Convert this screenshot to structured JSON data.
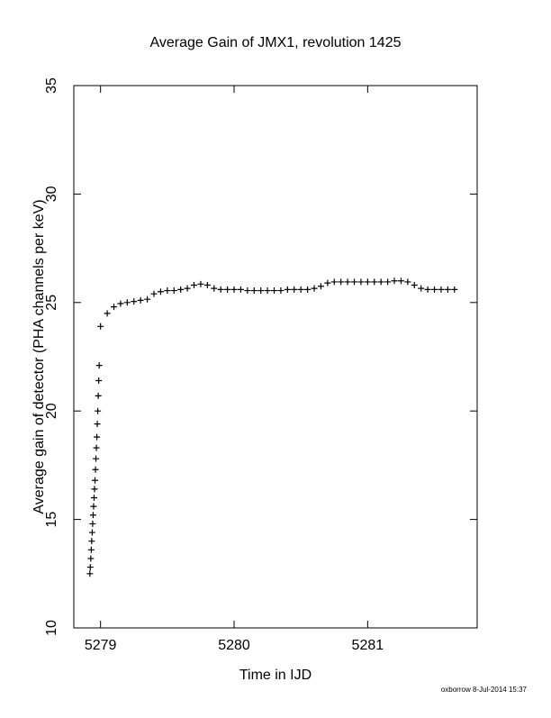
{
  "chart_data": {
    "type": "scatter",
    "title": "Average Gain of JMX1, revolution 1425",
    "x_label": "Time in IJD",
    "y_label": "Average gain of detector (PHA channels per keV)",
    "footer": "oxborrow  8-Jul-2014 15:37",
    "xlim": [
      5278.8,
      5281.82
    ],
    "xticks": [
      5279,
      5280,
      5281
    ],
    "ylim": [
      10,
      35
    ],
    "yticks": [
      10,
      15,
      20,
      25,
      30,
      35
    ],
    "marker": "+",
    "color": "#000000",
    "x": [
      5278.92,
      5278.9235,
      5278.927,
      5278.9305,
      5278.934,
      5278.9375,
      5278.941,
      5278.9445,
      5278.948,
      5278.9515,
      5278.955,
      5278.9585,
      5278.962,
      5278.9655,
      5278.969,
      5278.9725,
      5278.976,
      5278.9795,
      5278.983,
      5278.9865,
      5278.99,
      5279.0,
      5279.05,
      5279.1,
      5279.15,
      5279.2,
      5279.25,
      5279.3,
      5279.35,
      5279.4,
      5279.45,
      5279.5,
      5279.55,
      5279.6,
      5279.65,
      5279.7,
      5279.75,
      5279.8,
      5279.85,
      5279.9,
      5279.95,
      5280.0,
      5280.05,
      5280.1,
      5280.15,
      5280.2,
      5280.25,
      5280.3,
      5280.35,
      5280.4,
      5280.45,
      5280.5,
      5280.55,
      5280.6,
      5280.65,
      5280.7,
      5280.75,
      5280.8,
      5280.85,
      5280.9,
      5280.95,
      5281.0,
      5281.05,
      5281.1,
      5281.15,
      5281.2,
      5281.25,
      5281.3,
      5281.35,
      5281.4,
      5281.45,
      5281.5,
      5281.55,
      5281.6,
      5281.65
    ],
    "values": [
      12.5,
      12.8,
      13.2,
      13.6,
      14.0,
      14.4,
      14.8,
      15.2,
      15.6,
      16.0,
      16.4,
      16.8,
      17.3,
      17.8,
      18.3,
      18.8,
      19.4,
      20.0,
      20.7,
      21.4,
      22.1,
      23.9,
      24.5,
      24.8,
      24.95,
      25.0,
      25.05,
      25.1,
      25.15,
      25.4,
      25.5,
      25.55,
      25.55,
      25.6,
      25.65,
      25.8,
      25.85,
      25.8,
      25.65,
      25.6,
      25.6,
      25.6,
      25.6,
      25.55,
      25.55,
      25.55,
      25.55,
      25.55,
      25.55,
      25.6,
      25.6,
      25.6,
      25.6,
      25.65,
      25.75,
      25.9,
      25.95,
      25.95,
      25.95,
      25.95,
      25.95,
      25.95,
      25.95,
      25.95,
      25.95,
      26.0,
      26.0,
      25.95,
      25.8,
      25.65,
      25.6,
      25.6,
      25.6,
      25.6,
      25.6
    ]
  }
}
